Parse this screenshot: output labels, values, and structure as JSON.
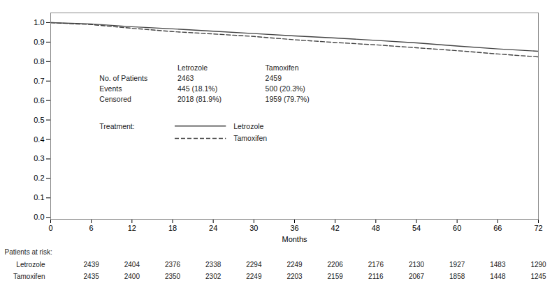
{
  "chart_data": {
    "type": "line",
    "xlabel": "Months",
    "x": [
      0,
      6,
      12,
      18,
      24,
      30,
      36,
      42,
      48,
      54,
      60,
      66,
      72
    ],
    "series": [
      {
        "name": "Letrozole",
        "color": "#444444",
        "line_style": "solid",
        "values": [
          1.0,
          0.993,
          0.979,
          0.968,
          0.956,
          0.944,
          0.932,
          0.921,
          0.909,
          0.896,
          0.88,
          0.865,
          0.853
        ]
      },
      {
        "name": "Tamoxifen",
        "color": "#444444",
        "line_style": "dashed",
        "values": [
          1.0,
          0.99,
          0.971,
          0.954,
          0.942,
          0.929,
          0.912,
          0.898,
          0.886,
          0.871,
          0.856,
          0.839,
          0.824
        ]
      }
    ],
    "xlim": [
      0,
      72
    ],
    "ylim": [
      -0.01,
      1.05
    ],
    "xticks": [
      0,
      6,
      12,
      18,
      24,
      30,
      36,
      42,
      48,
      54,
      60,
      66,
      72
    ],
    "yticks": [
      {
        "value": 0.0,
        "label": "0.0"
      },
      0.1,
      0.2,
      0.3,
      0.4,
      0.5,
      0.6,
      0.7,
      0.8,
      0.9,
      {
        "value": 1.0,
        "label": "1.0"
      }
    ],
    "grid": false,
    "legend": "center left",
    "legend_title": "Treatment:",
    "stats_table": {
      "header": [
        "Letrozole",
        "Tamoxifen"
      ],
      "rows": [
        [
          "No. of Patients",
          "2463",
          "2459"
        ],
        [
          "Events",
          "445 (18.1%)",
          "500 (20.3%)"
        ],
        [
          "Censored",
          "2018 (81.9%)",
          "1959 (79.7%)"
        ]
      ]
    },
    "at_risk": {
      "label": "Patients at risk:",
      "x": [
        6,
        12,
        18,
        24,
        30,
        36,
        42,
        48,
        54,
        60,
        66,
        72
      ],
      "rows": [
        {
          "name": "Letrozole",
          "values": [
            2439,
            2404,
            2376,
            2338,
            2294,
            2249,
            2206,
            2176,
            2130,
            1927,
            1483,
            1290
          ]
        },
        {
          "name": "Tamoxifen",
          "values": [
            2435,
            2400,
            2350,
            2302,
            2249,
            2203,
            2159,
            2116,
            2067,
            1858,
            1448,
            1245
          ]
        }
      ]
    }
  }
}
